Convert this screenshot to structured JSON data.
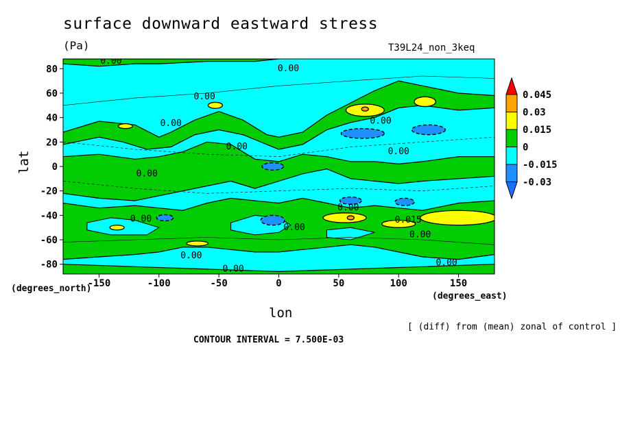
{
  "title": "surface downward eastward stress",
  "units": "(Pa)",
  "run_name": "T39L24_non_3keq",
  "note": "[ (diff) from (mean) zonal of control ]",
  "contour_interval": "CONTOUR INTERVAL = 7.500E-03",
  "colors": {
    "lt_neg": "#00ffff",
    "neg": "#1e90ff",
    "zero_pos": "#00cc00",
    "pos": "#ffff00",
    "pos2": "#ffa500",
    "pos3": "#ff0000",
    "neg_arrow": "#1e6fff"
  },
  "chart_data": {
    "type": "heatmap",
    "xlabel": "lon",
    "ylabel": "lat",
    "x_unit": "(degrees_east)",
    "y_unit": "(degrees_north)",
    "xlim": [
      -180,
      180
    ],
    "ylim": [
      -88,
      88
    ],
    "x_ticks": [
      -150,
      -100,
      -50,
      0,
      50,
      100,
      150
    ],
    "y_ticks": [
      -80,
      -60,
      -40,
      -20,
      0,
      20,
      40,
      60,
      80
    ],
    "colorbar": {
      "levels": [
        -0.03,
        -0.015,
        0,
        0.015,
        0.03,
        0.045
      ],
      "labels": [
        "-0.03",
        "-0.015",
        "0",
        "0.015",
        "0.03",
        "0.045"
      ]
    },
    "contour_labels": [
      {
        "lon": -140,
        "lat": 84,
        "text": "0.00"
      },
      {
        "lon": 8,
        "lat": 78,
        "text": "0.00"
      },
      {
        "lon": -62,
        "lat": 55,
        "text": "0.00"
      },
      {
        "lon": -90,
        "lat": 33,
        "text": "0.00"
      },
      {
        "lon": -35,
        "lat": 14,
        "text": "0.00"
      },
      {
        "lon": 85,
        "lat": 35,
        "text": "0.00"
      },
      {
        "lon": 100,
        "lat": 10,
        "text": "0.00"
      },
      {
        "lon": -110,
        "lat": -8,
        "text": "0.00"
      },
      {
        "lon": -115,
        "lat": -45,
        "text": "0.00"
      },
      {
        "lon": 13,
        "lat": -52,
        "text": "0.00"
      },
      {
        "lon": 58,
        "lat": -36,
        "text": "0.00"
      },
      {
        "lon": 108,
        "lat": -46,
        "text": "0.015"
      },
      {
        "lon": 118,
        "lat": -58,
        "text": "0.00"
      },
      {
        "lon": -73,
        "lat": -75,
        "text": "0.00"
      },
      {
        "lon": 140,
        "lat": -81,
        "text": "0.00"
      },
      {
        "lon": -38,
        "lat": -86,
        "text": "0.00"
      }
    ]
  }
}
